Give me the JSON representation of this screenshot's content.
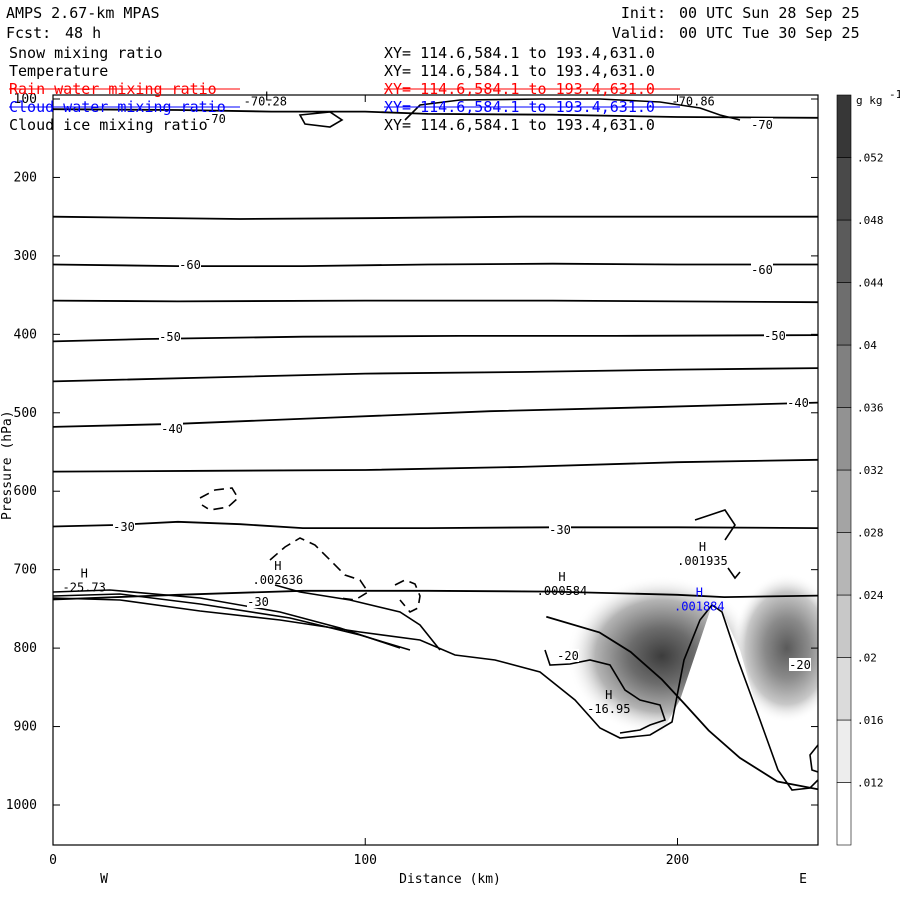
{
  "header": {
    "model": "AMPS 2.67-km MPAS",
    "fcst_label": "Fcst:",
    "fcst_value": "48 h",
    "init_label": "Init:",
    "init_value": "00 UTC Sun 28 Sep 25",
    "valid_label": "Valid:",
    "valid_value": "00 UTC Tue 30 Sep 25"
  },
  "fields": [
    {
      "name": "Snow mixing ratio",
      "xy": "XY= 114.6,584.1 to 193.4,631.0",
      "color": "#000000"
    },
    {
      "name": "Temperature",
      "xy": "XY= 114.6,584.1 to 193.4,631.0",
      "color": "#000000"
    },
    {
      "name": "Rain water mixing ratio",
      "xy": "XY= 114.6,584.1 to 193.4,631.0",
      "color": "#ff0000"
    },
    {
      "name": "Cloud water mixing ratio",
      "xy": "XY= 114.6,584.1 to 193.4,631.0",
      "color": "#0000ff"
    },
    {
      "name": "Cloud ice mixing ratio",
      "xy": "XY= 114.6,584.1 to 193.4,631.0",
      "color": "#000000"
    }
  ],
  "chart_data": {
    "type": "contour_cross_section",
    "xlabel": "Distance (km)",
    "ylabel": "Pressure (hPa)",
    "xlim": [
      0,
      245
    ],
    "ylim": [
      1050,
      100
    ],
    "x_ticks": [
      0,
      100,
      200
    ],
    "y_ticks": [
      100,
      200,
      300,
      400,
      500,
      600,
      700,
      800,
      900,
      1000
    ],
    "x_left_label": "W",
    "x_right_label": "E",
    "colorbar": {
      "unit": "g kg",
      "unit_exp": "-1",
      "ticks": [
        ".012",
        ".016",
        ".02",
        ".024",
        ".028",
        ".032",
        ".036",
        ".04",
        ".044",
        ".048",
        ".052"
      ]
    },
    "temperature_contours": [
      {
        "level": -70,
        "points": [
          [
            0,
            113
          ],
          [
            40,
            114
          ],
          [
            70,
            116
          ],
          [
            100,
            116
          ],
          [
            120,
            119
          ],
          [
            160,
            120
          ],
          [
            200,
            123
          ],
          [
            245,
            124
          ]
        ]
      },
      {
        "level": -60,
        "points": [
          [
            0,
            250
          ],
          [
            60,
            253
          ],
          [
            100,
            252
          ],
          [
            150,
            250
          ],
          [
            200,
            250
          ],
          [
            245,
            250
          ]
        ]
      },
      {
        "level": -60,
        "points": [
          [
            0,
            311
          ],
          [
            40,
            313
          ],
          [
            80,
            313
          ],
          [
            120,
            311
          ],
          [
            160,
            310
          ],
          [
            200,
            311
          ],
          [
            245,
            311
          ]
        ]
      },
      {
        "level": -50,
        "points": [
          [
            0,
            357
          ],
          [
            40,
            358
          ],
          [
            100,
            357
          ],
          [
            160,
            357
          ],
          [
            200,
            358
          ],
          [
            245,
            359
          ]
        ]
      },
      {
        "level": -50,
        "points": [
          [
            0,
            409
          ],
          [
            30,
            406
          ],
          [
            80,
            403
          ],
          [
            130,
            402
          ],
          [
            180,
            402
          ],
          [
            245,
            401
          ]
        ]
      },
      {
        "level": -40,
        "points": [
          [
            0,
            460
          ],
          [
            50,
            455
          ],
          [
            100,
            450
          ],
          [
            150,
            448
          ],
          [
            200,
            445
          ],
          [
            245,
            443
          ]
        ]
      },
      {
        "level": -40,
        "points": [
          [
            0,
            518
          ],
          [
            40,
            514
          ],
          [
            90,
            506
          ],
          [
            140,
            498
          ],
          [
            190,
            493
          ],
          [
            245,
            487
          ]
        ]
      },
      {
        "level": -30,
        "points": [
          [
            0,
            575
          ],
          [
            50,
            574
          ],
          [
            100,
            573
          ],
          [
            150,
            569
          ],
          [
            200,
            563
          ],
          [
            245,
            560
          ]
        ]
      },
      {
        "level": -30,
        "points": [
          [
            0,
            645
          ],
          [
            20,
            643
          ],
          [
            40,
            639
          ],
          [
            60,
            642
          ],
          [
            80,
            647
          ],
          [
            120,
            647
          ],
          [
            160,
            646
          ],
          [
            200,
            646
          ],
          [
            245,
            647
          ]
        ]
      },
      {
        "level": -30,
        "points": [
          [
            0,
            738
          ],
          [
            40,
            732
          ],
          [
            80,
            727
          ],
          [
            120,
            727
          ],
          [
            160,
            728
          ],
          [
            200,
            732
          ],
          [
            215,
            735
          ],
          [
            245,
            733
          ]
        ]
      },
      {
        "level": -20,
        "points": [
          [
            158,
            760
          ],
          [
            175,
            780
          ],
          [
            185,
            805
          ],
          [
            195,
            840
          ],
          [
            202,
            870
          ],
          [
            210,
            905
          ],
          [
            220,
            940
          ],
          [
            232,
            970
          ],
          [
            245,
            980
          ]
        ]
      }
    ],
    "extrema": [
      {
        "type": "H",
        "value": "-25.73",
        "x": 10,
        "p": 728
      },
      {
        "type": "H",
        "value": ".002636",
        "x": 72,
        "p": 718
      },
      {
        "type": "H",
        "value": ".000584",
        "x": 163,
        "p": 732
      },
      {
        "type": "H",
        "value": ".001935",
        "x": 208,
        "p": 694
      },
      {
        "type": "H",
        "value": ".001884",
        "x": 207,
        "p": 752
      },
      {
        "type": "H",
        "value": "-16.95",
        "x": 178,
        "p": 883
      },
      {
        "type": "L",
        "value": "-70.28",
        "x": 68,
        "p": 108
      },
      {
        "type": "L",
        "value": "-70.86",
        "x": 205,
        "p": 108
      }
    ],
    "snow_maxima": [
      {
        "x": 195,
        "p": 810,
        "value": 0.048
      },
      {
        "x": 235,
        "p": 800,
        "value": 0.044
      }
    ]
  }
}
